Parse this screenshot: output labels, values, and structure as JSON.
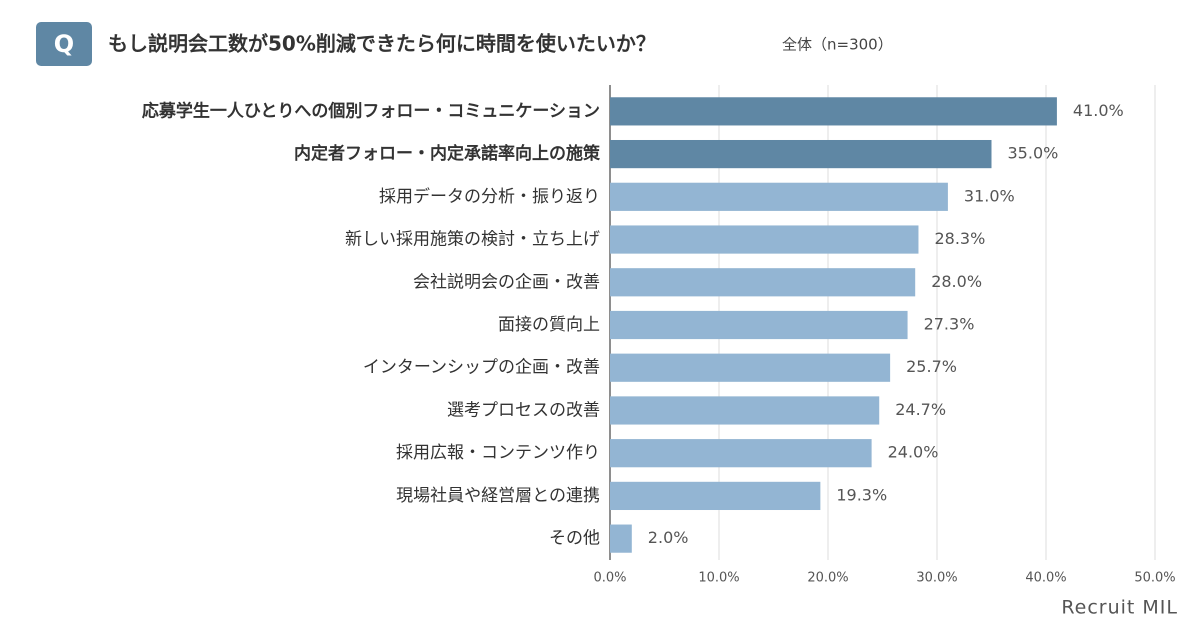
{
  "chart_data": {
    "type": "bar",
    "orientation": "horizontal",
    "badge": "Q",
    "title": "もし説明会工数が50%削減できたら何に時間を使いたいか？",
    "subtitle": "全体（n=300）",
    "brand": "Recruit MIL",
    "categories": [
      "応募学生一人ひとりへの個別フォロー・コミュニケーション",
      "内定者フォロー・内定承諾率向上の施策",
      "採用データの分析・振り返り",
      "新しい採用施策の検討・立ち上げ",
      "会社説明会の企画・改善",
      "面接の質向上",
      "インターンシップの企画・改善",
      "選考プロセスの改善",
      "採用広報・コンテンツ作り",
      "現場社員や経営層との連携",
      "その他"
    ],
    "values": [
      41.0,
      35.0,
      31.0,
      28.3,
      28.0,
      27.3,
      25.7,
      24.7,
      24.0,
      19.3,
      2.0
    ],
    "value_labels": [
      "41.0%",
      "35.0%",
      "31.0%",
      "28.3%",
      "28.0%",
      "27.3%",
      "25.7%",
      "24.7%",
      "24.0%",
      "19.3%",
      "2.0%"
    ],
    "colors": [
      "#5f87a4",
      "#5f87a4",
      "#93b5d3",
      "#93b5d3",
      "#93b5d3",
      "#93b5d3",
      "#93b5d3",
      "#93b5d3",
      "#93b5d3",
      "#93b5d3",
      "#93b5d3"
    ],
    "xlim": [
      0,
      50
    ],
    "xticks": [
      {
        "value": 0,
        "label": "0.0%"
      },
      {
        "value": 10,
        "label": "10.0%"
      },
      {
        "value": 20,
        "label": "20.0%"
      },
      {
        "value": 30,
        "label": "30.0%"
      },
      {
        "value": 40,
        "label": "40.0%"
      },
      {
        "value": 50,
        "label": "50.0%"
      }
    ],
    "grid": true
  }
}
